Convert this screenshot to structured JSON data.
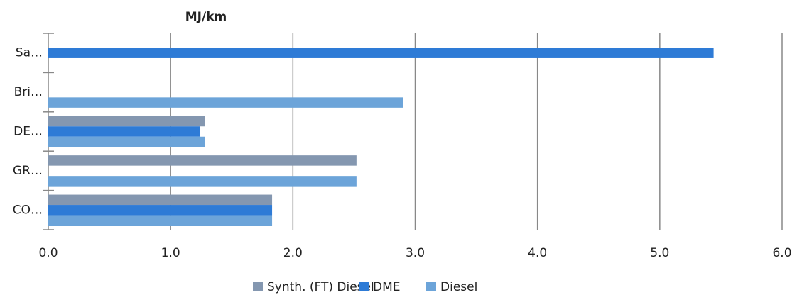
{
  "chart_data": {
    "type": "bar",
    "orientation": "horizontal",
    "title": "MJ/km",
    "categories": [
      "Sa…",
      "Bri…",
      "DE…",
      "GR…",
      "CO…"
    ],
    "series": [
      {
        "name": "Synth. (FT) Diesel",
        "color": "#8497b0",
        "values": [
          null,
          null,
          1.28,
          2.52,
          1.83
        ]
      },
      {
        "name": "DME",
        "color": "#2e7bd6",
        "values": [
          5.44,
          null,
          1.24,
          null,
          1.83
        ]
      },
      {
        "name": "Diesel",
        "color": "#6ca4d9",
        "values": [
          null,
          2.9,
          1.28,
          2.52,
          1.83
        ]
      }
    ],
    "xlim": [
      0,
      6
    ],
    "xticks": [
      {
        "value": 0,
        "label": "0.0"
      },
      {
        "value": 1,
        "label": "1.0"
      },
      {
        "value": 2,
        "label": "2.0"
      },
      {
        "value": 3,
        "label": "3.0"
      },
      {
        "value": 4,
        "label": "4.0"
      },
      {
        "value": 5,
        "label": "5.0"
      },
      {
        "value": 6,
        "label": "6.0"
      }
    ],
    "grid": true,
    "legend": "bottom"
  }
}
